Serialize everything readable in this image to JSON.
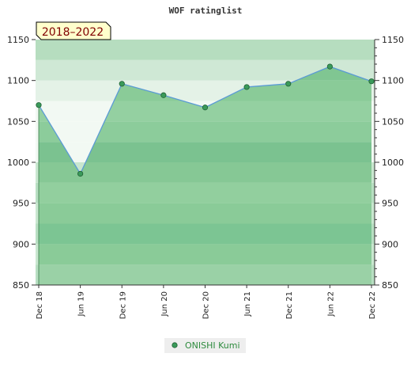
{
  "chart_data": {
    "type": "area",
    "title": "WOF ratinglist",
    "period_badge": "2018–2022",
    "categories": [
      "Dec 18",
      "Jun 19",
      "Dec 19",
      "Jun 20",
      "Dec 20",
      "Jun 21",
      "Dec 21",
      "Jun 22",
      "Dec 22"
    ],
    "series": [
      {
        "name": "ONISHI Kumi",
        "values": [
          1070,
          986,
          1096,
          1082,
          1067,
          1092,
          1096,
          1117,
          1099
        ]
      }
    ],
    "yticks": [
      850,
      900,
      950,
      1000,
      1050,
      1100,
      1150
    ],
    "ylim": [
      850,
      1150
    ],
    "y_axis_both_sides": true,
    "grid": "horizontal bands",
    "legend": "bottom-center",
    "colors": {
      "line": "#5b9bd5",
      "marker": "#3a9a5a",
      "area_band_light": "#9fd3aa",
      "area_band_dark": "#7cc593",
      "bg_band_light": "#e6f3e8",
      "bg_band_dark": "#b5dfc0",
      "badge_bg": "#ffffcc",
      "badge_text": "#800000"
    }
  }
}
